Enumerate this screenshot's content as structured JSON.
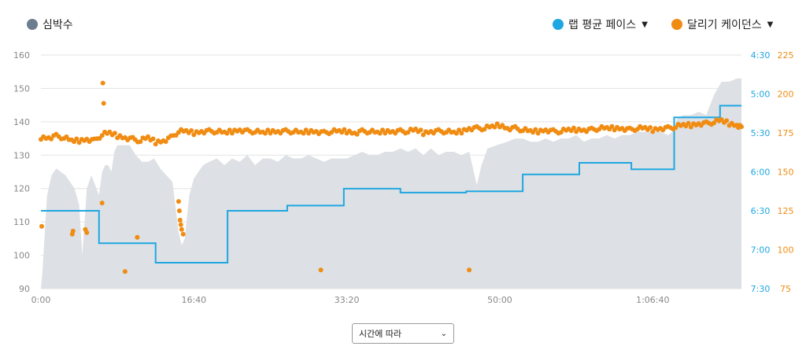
{
  "legend": {
    "heart_rate": {
      "label": "심박수",
      "color": "#6b7d8f"
    },
    "lap_pace": {
      "label": "랩 평균 페이스",
      "color": "#1fa7e1"
    },
    "cadence": {
      "label": "달리기 케이던스",
      "color": "#f08c12"
    }
  },
  "dropdown": {
    "value": "시간에 따라"
  },
  "chart_data": {
    "type": "line",
    "x_unit": "elapsed time",
    "x_ticks": [
      "0:00",
      "16:40",
      "33:20",
      "50:00",
      "1:06:40"
    ],
    "x_tick_seconds": [
      0,
      1000,
      2000,
      3000,
      4000
    ],
    "xlim_seconds": [
      0,
      4580
    ],
    "axes": {
      "left": {
        "name": "heart rate",
        "ticks": [
          90,
          100,
          110,
          120,
          130,
          140,
          150,
          160
        ],
        "ylim": [
          90,
          160
        ],
        "color": "#888888"
      },
      "right_pace": {
        "ticks": [
          "4:30",
          "5:00",
          "5:30",
          "6:00",
          "6:30",
          "7:00",
          "7:30"
        ],
        "ylim_seconds_per_km": [
          270,
          450
        ],
        "inverted": true,
        "color": "#1fa7e1"
      },
      "right_cadence": {
        "ticks": [
          75,
          100,
          125,
          150,
          175,
          200,
          225
        ],
        "ylim": [
          75,
          225
        ],
        "color": "#f08c12"
      }
    },
    "grid": true,
    "heart_rate": {
      "style": "area",
      "color": "#dde0e4",
      "points": [
        [
          0,
          90
        ],
        [
          10,
          95
        ],
        [
          40,
          118
        ],
        [
          70,
          124
        ],
        [
          100,
          126
        ],
        [
          160,
          124
        ],
        [
          220,
          120
        ],
        [
          250,
          115
        ],
        [
          270,
          100
        ],
        [
          300,
          120
        ],
        [
          330,
          124
        ],
        [
          380,
          118
        ],
        [
          400,
          125
        ],
        [
          420,
          127
        ],
        [
          440,
          127
        ],
        [
          460,
          125
        ],
        [
          480,
          131
        ],
        [
          500,
          133
        ],
        [
          540,
          133
        ],
        [
          580,
          133
        ],
        [
          620,
          130
        ],
        [
          660,
          128
        ],
        [
          700,
          128
        ],
        [
          740,
          129
        ],
        [
          780,
          126
        ],
        [
          800,
          125
        ],
        [
          860,
          122
        ],
        [
          900,
          107
        ],
        [
          920,
          103
        ],
        [
          940,
          105
        ],
        [
          970,
          118
        ],
        [
          1000,
          123
        ],
        [
          1060,
          127
        ],
        [
          1100,
          128
        ],
        [
          1150,
          129
        ],
        [
          1200,
          127
        ],
        [
          1250,
          129
        ],
        [
          1300,
          128
        ],
        [
          1350,
          130
        ],
        [
          1400,
          127
        ],
        [
          1450,
          129
        ],
        [
          1500,
          129
        ],
        [
          1550,
          128
        ],
        [
          1600,
          130
        ],
        [
          1650,
          129
        ],
        [
          1700,
          129
        ],
        [
          1750,
          130
        ],
        [
          1800,
          129
        ],
        [
          1850,
          128
        ],
        [
          1900,
          129
        ],
        [
          1950,
          129
        ],
        [
          2000,
          129
        ],
        [
          2050,
          130
        ],
        [
          2100,
          131
        ],
        [
          2150,
          130
        ],
        [
          2200,
          130
        ],
        [
          2250,
          131
        ],
        [
          2300,
          131
        ],
        [
          2350,
          132
        ],
        [
          2400,
          131
        ],
        [
          2450,
          132
        ],
        [
          2500,
          130
        ],
        [
          2550,
          132
        ],
        [
          2600,
          130
        ],
        [
          2650,
          131
        ],
        [
          2700,
          131
        ],
        [
          2750,
          130
        ],
        [
          2800,
          131
        ],
        [
          2850,
          121
        ],
        [
          2880,
          127
        ],
        [
          2920,
          132
        ],
        [
          2980,
          133
        ],
        [
          3050,
          134
        ],
        [
          3100,
          135
        ],
        [
          3150,
          135
        ],
        [
          3200,
          134
        ],
        [
          3250,
          134
        ],
        [
          3300,
          135
        ],
        [
          3350,
          134
        ],
        [
          3400,
          135
        ],
        [
          3450,
          135
        ],
        [
          3500,
          136
        ],
        [
          3550,
          134
        ],
        [
          3600,
          135
        ],
        [
          3650,
          135
        ],
        [
          3700,
          136
        ],
        [
          3750,
          135
        ],
        [
          3800,
          136
        ],
        [
          3850,
          136
        ],
        [
          3900,
          137
        ],
        [
          3950,
          137
        ],
        [
          4000,
          137
        ],
        [
          4050,
          137
        ],
        [
          4100,
          136
        ],
        [
          4130,
          137
        ],
        [
          4160,
          141
        ],
        [
          4200,
          142
        ],
        [
          4250,
          142
        ],
        [
          4300,
          143
        ],
        [
          4350,
          142
        ],
        [
          4400,
          148
        ],
        [
          4450,
          152
        ],
        [
          4500,
          152
        ],
        [
          4550,
          153
        ],
        [
          4580,
          153
        ]
      ]
    },
    "lap_pace": {
      "style": "step",
      "color": "#1fa7e1",
      "laps": [
        [
          0,
          380,
          390
        ],
        [
          380,
          750,
          415
        ],
        [
          750,
          1220,
          430
        ],
        [
          1220,
          1610,
          390
        ],
        [
          1610,
          1980,
          386
        ],
        [
          1980,
          2350,
          373
        ],
        [
          2350,
          2780,
          376
        ],
        [
          2780,
          3150,
          375
        ],
        [
          3150,
          3520,
          362
        ],
        [
          3520,
          3860,
          353
        ],
        [
          3860,
          4140,
          358
        ],
        [
          4140,
          4440,
          318
        ],
        [
          4440,
          4580,
          309
        ]
      ]
    },
    "cadence": {
      "style": "scatter",
      "color": "#f08c12",
      "baseline": [
        [
          0,
          172
        ],
        [
          50,
          172
        ],
        [
          100,
          173
        ],
        [
          150,
          172
        ],
        [
          200,
          170
        ],
        [
          250,
          170
        ],
        [
          300,
          171
        ],
        [
          350,
          170
        ],
        [
          400,
          174
        ],
        [
          450,
          175
        ],
        [
          500,
          173
        ],
        [
          550,
          172
        ],
        [
          600,
          171
        ],
        [
          650,
          170
        ],
        [
          700,
          172
        ],
        [
          750,
          169
        ],
        [
          800,
          170
        ],
        [
          850,
          172
        ],
        [
          900,
          176
        ],
        [
          950,
          176
        ],
        [
          1000,
          175
        ],
        [
          1050,
          176
        ],
        [
          1100,
          176
        ],
        [
          1150,
          176
        ],
        [
          1200,
          175
        ],
        [
          1250,
          176
        ],
        [
          1300,
          177
        ],
        [
          1350,
          176
        ],
        [
          1400,
          176
        ],
        [
          1450,
          175
        ],
        [
          1500,
          176
        ],
        [
          1550,
          176
        ],
        [
          1600,
          176
        ],
        [
          1650,
          176
        ],
        [
          1700,
          175
        ],
        [
          1750,
          176
        ],
        [
          1800,
          176
        ],
        [
          1850,
          175
        ],
        [
          1900,
          176
        ],
        [
          1950,
          176
        ],
        [
          2000,
          176
        ],
        [
          2050,
          175
        ],
        [
          2100,
          176
        ],
        [
          2150,
          176
        ],
        [
          2200,
          175
        ],
        [
          2250,
          176
        ],
        [
          2300,
          176
        ],
        [
          2350,
          176
        ],
        [
          2400,
          176
        ],
        [
          2450,
          177
        ],
        [
          2500,
          175
        ],
        [
          2550,
          176
        ],
        [
          2600,
          176
        ],
        [
          2650,
          176
        ],
        [
          2700,
          175
        ],
        [
          2750,
          176
        ],
        [
          2800,
          178
        ],
        [
          2850,
          178
        ],
        [
          2900,
          178
        ],
        [
          2950,
          179
        ],
        [
          3000,
          180
        ],
        [
          3050,
          178
        ],
        [
          3100,
          178
        ],
        [
          3150,
          177
        ],
        [
          3200,
          176
        ],
        [
          3250,
          176
        ],
        [
          3300,
          177
        ],
        [
          3350,
          176
        ],
        [
          3400,
          176
        ],
        [
          3450,
          177
        ],
        [
          3500,
          177
        ],
        [
          3550,
          177
        ],
        [
          3600,
          177
        ],
        [
          3650,
          178
        ],
        [
          3700,
          178
        ],
        [
          3750,
          178
        ],
        [
          3800,
          178
        ],
        [
          3850,
          177
        ],
        [
          3900,
          178
        ],
        [
          3950,
          178
        ],
        [
          4000,
          177
        ],
        [
          4050,
          178
        ],
        [
          4100,
          178
        ],
        [
          4150,
          179
        ],
        [
          4200,
          180
        ],
        [
          4250,
          180
        ],
        [
          4300,
          181
        ],
        [
          4350,
          181
        ],
        [
          4400,
          182
        ],
        [
          4450,
          183
        ],
        [
          4500,
          181
        ],
        [
          4550,
          180
        ],
        [
          4580,
          179
        ]
      ],
      "outliers": [
        [
          5,
          115
        ],
        [
          205,
          110
        ],
        [
          210,
          112
        ],
        [
          290,
          113
        ],
        [
          300,
          111
        ],
        [
          400,
          130
        ],
        [
          405,
          207
        ],
        [
          410,
          194
        ],
        [
          550,
          86
        ],
        [
          630,
          108
        ],
        [
          900,
          131
        ],
        [
          905,
          125
        ],
        [
          910,
          119
        ],
        [
          915,
          116
        ],
        [
          920,
          113
        ],
        [
          930,
          110
        ],
        [
          1830,
          87
        ],
        [
          2800,
          87
        ]
      ]
    }
  }
}
